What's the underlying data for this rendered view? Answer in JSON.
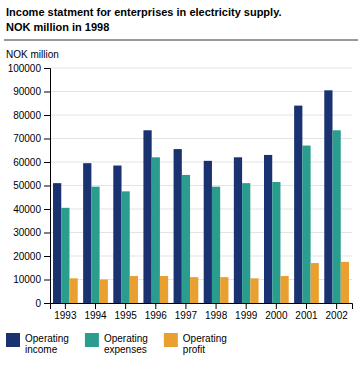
{
  "chart_data": {
    "type": "bar",
    "title": "Income statment for enterprises in electricity supply.",
    "subtitle": "NOK million in 1998",
    "ylabel": "NOK million",
    "categories": [
      "1993",
      "1994",
      "1995",
      "1996",
      "1997",
      "1998",
      "1999",
      "2000",
      "2001",
      "2002"
    ],
    "series": [
      {
        "name": "Operating\nincome",
        "color": "#1a3270",
        "values": [
          51000,
          59500,
          58500,
          73500,
          65500,
          60500,
          62000,
          63000,
          84000,
          90500
        ]
      },
      {
        "name": "Operating\nexpenses",
        "color": "#2a9d8f",
        "values": [
          40500,
          49500,
          47500,
          62000,
          54500,
          49500,
          51000,
          51500,
          67000,
          73500
        ]
      },
      {
        "name": "Operating\nprofit",
        "color": "#e9a030",
        "values": [
          10500,
          10000,
          11500,
          11500,
          11000,
          11000,
          10500,
          11500,
          17000,
          17500
        ]
      }
    ],
    "ylim": [
      0,
      100000
    ],
    "yticks": [
      0,
      10000,
      20000,
      30000,
      40000,
      50000,
      60000,
      70000,
      80000,
      90000,
      100000
    ],
    "grid": true,
    "legend": "bottom"
  }
}
